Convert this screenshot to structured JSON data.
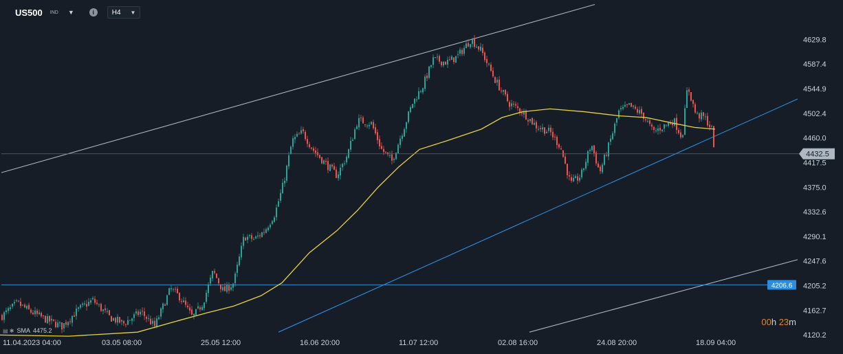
{
  "toolbar": {
    "symbol": "US500",
    "symbol_type": "IND",
    "timeframe": "H4",
    "info_icon": "info-icon"
  },
  "timer": {
    "h": "00",
    "h_unit": "h",
    "m": "23",
    "m_unit": "m"
  },
  "sma": {
    "label": "SMA",
    "value": "4475.2"
  },
  "colors": {
    "background": "#161d26",
    "up": "#26a69a",
    "down": "#ef5350",
    "sma": "#e6d33c",
    "trend_blue": "#2b8de0",
    "trend_gray": "#aab6c5"
  },
  "chart_data": {
    "type": "candlestick",
    "instrument": "US500",
    "timeframe": "H4",
    "ylim": [
      4111,
      4655
    ],
    "y_ticks": [
      "4629.8",
      "4587.4",
      "4544.9",
      "4502.4",
      "4460.0",
      "4417.5",
      "4375.0",
      "4332.6",
      "4290.1",
      "4247.6",
      "4205.2",
      "4162.7",
      "4120.2"
    ],
    "x_ticks": [
      "11.04.2023  04:00",
      "03.05  08:00",
      "25.05  12:00",
      "16.06  20:00",
      "11.07  12:00",
      "02.08  16:00",
      "24.08  20:00",
      "18.09  04:00"
    ],
    "current_price": "4432.5",
    "horizontal_level": "4206.6",
    "close_path": [
      [
        0,
        4150
      ],
      [
        25,
        4175
      ],
      [
        45,
        4160
      ],
      [
        70,
        4145
      ],
      [
        90,
        4135
      ],
      [
        115,
        4165
      ],
      [
        135,
        4180
      ],
      [
        160,
        4150
      ],
      [
        180,
        4140
      ],
      [
        205,
        4160
      ],
      [
        225,
        4135
      ],
      [
        248,
        4200
      ],
      [
        262,
        4185
      ],
      [
        280,
        4150
      ],
      [
        295,
        4175
      ],
      [
        310,
        4230
      ],
      [
        325,
        4195
      ],
      [
        340,
        4210
      ],
      [
        355,
        4290
      ],
      [
        370,
        4285
      ],
      [
        385,
        4300
      ],
      [
        400,
        4330
      ],
      [
        412,
        4380
      ],
      [
        425,
        4455
      ],
      [
        440,
        4470
      ],
      [
        455,
        4440
      ],
      [
        470,
        4420
      ],
      [
        490,
        4395
      ],
      [
        505,
        4430
      ],
      [
        520,
        4490
      ],
      [
        540,
        4485
      ],
      [
        555,
        4440
      ],
      [
        570,
        4420
      ],
      [
        585,
        4470
      ],
      [
        600,
        4520
      ],
      [
        615,
        4550
      ],
      [
        630,
        4595
      ],
      [
        650,
        4590
      ],
      [
        665,
        4600
      ],
      [
        685,
        4630
      ],
      [
        700,
        4610
      ],
      [
        720,
        4560
      ],
      [
        740,
        4520
      ],
      [
        760,
        4505
      ],
      [
        780,
        4480
      ],
      [
        800,
        4470
      ],
      [
        815,
        4445
      ],
      [
        830,
        4380
      ],
      [
        845,
        4395
      ],
      [
        860,
        4450
      ],
      [
        872,
        4400
      ],
      [
        885,
        4445
      ],
      [
        900,
        4505
      ],
      [
        915,
        4515
      ],
      [
        935,
        4500
      ],
      [
        950,
        4470
      ],
      [
        965,
        4480
      ],
      [
        980,
        4490
      ],
      [
        992,
        4460
      ],
      [
        1000,
        4550
      ],
      [
        1012,
        4500
      ],
      [
        1025,
        4495
      ],
      [
        1035,
        4475
      ],
      [
        1040,
        4432
      ]
    ],
    "sma_path": [
      [
        0,
        4120
      ],
      [
        100,
        4118
      ],
      [
        200,
        4125
      ],
      [
        260,
        4145
      ],
      [
        300,
        4158
      ],
      [
        340,
        4170
      ],
      [
        380,
        4188
      ],
      [
        410,
        4210
      ],
      [
        450,
        4262
      ],
      [
        490,
        4300
      ],
      [
        520,
        4335
      ],
      [
        550,
        4375
      ],
      [
        580,
        4410
      ],
      [
        610,
        4440
      ],
      [
        650,
        4455
      ],
      [
        700,
        4475
      ],
      [
        730,
        4495
      ],
      [
        760,
        4505
      ],
      [
        800,
        4510
      ],
      [
        850,
        4505
      ],
      [
        900,
        4498
      ],
      [
        940,
        4495
      ],
      [
        980,
        4485
      ],
      [
        1010,
        4478
      ],
      [
        1040,
        4475
      ]
    ]
  }
}
